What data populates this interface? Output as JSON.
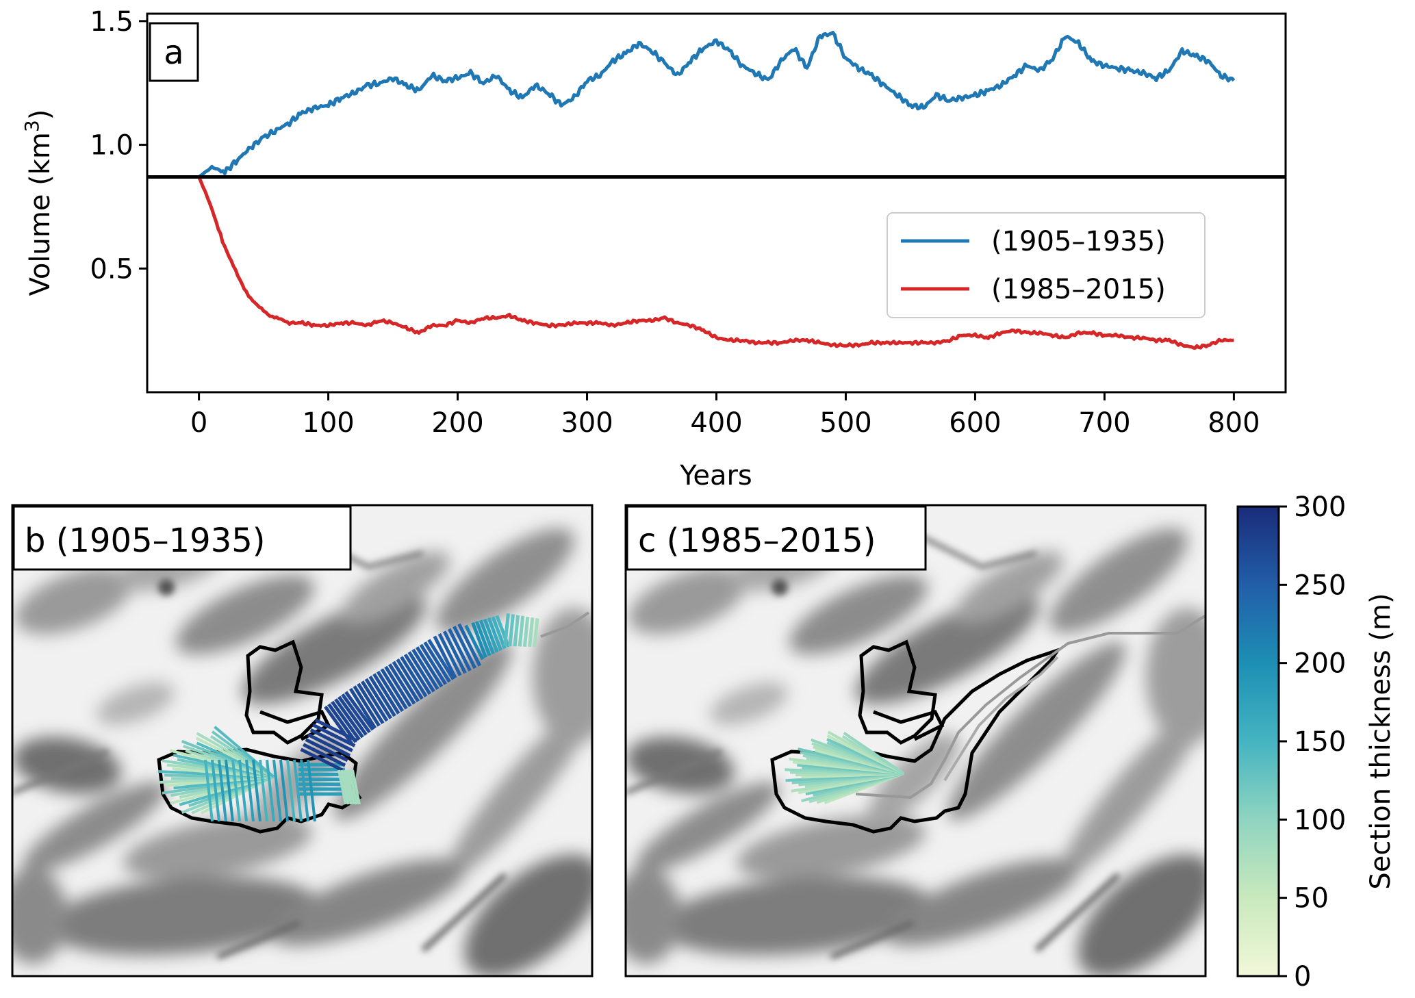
{
  "chart_data": [
    {
      "panel": "a",
      "type": "line",
      "xlabel": "Years",
      "ylabel": "Volume (km",
      "ylabel_sup": "3",
      "ylabel_end": ")",
      "xlim": [
        -40,
        840
      ],
      "ylim": [
        0.0,
        1.53
      ],
      "xticks": [
        0,
        100,
        200,
        300,
        400,
        500,
        600,
        700,
        800
      ],
      "yticks": [
        0.5,
        1.0,
        1.5
      ],
      "ytick_labels": [
        "0.5",
        "1.0",
        "1.5"
      ],
      "reference_line": {
        "y": 0.87,
        "color": "#000000"
      },
      "legend_position": "center-right",
      "series": [
        {
          "name": "(1905–1935)",
          "color": "#1f77b4",
          "x": [
            0,
            10,
            20,
            30,
            40,
            50,
            60,
            70,
            80,
            90,
            100,
            110,
            120,
            130,
            140,
            150,
            160,
            170,
            180,
            190,
            200,
            210,
            220,
            230,
            240,
            250,
            260,
            270,
            280,
            290,
            300,
            310,
            320,
            330,
            340,
            350,
            360,
            370,
            380,
            390,
            400,
            410,
            420,
            430,
            440,
            450,
            460,
            470,
            480,
            490,
            500,
            510,
            520,
            530,
            540,
            550,
            560,
            570,
            580,
            590,
            600,
            610,
            620,
            630,
            640,
            650,
            660,
            670,
            680,
            690,
            700,
            710,
            720,
            730,
            740,
            750,
            760,
            770,
            780,
            790,
            800
          ],
          "values": [
            0.87,
            0.91,
            0.89,
            0.94,
            0.99,
            1.03,
            1.06,
            1.09,
            1.13,
            1.15,
            1.16,
            1.19,
            1.21,
            1.24,
            1.25,
            1.27,
            1.24,
            1.22,
            1.28,
            1.26,
            1.27,
            1.29,
            1.25,
            1.28,
            1.22,
            1.19,
            1.24,
            1.21,
            1.16,
            1.19,
            1.26,
            1.28,
            1.34,
            1.37,
            1.41,
            1.38,
            1.33,
            1.28,
            1.34,
            1.39,
            1.42,
            1.38,
            1.32,
            1.29,
            1.26,
            1.34,
            1.39,
            1.31,
            1.44,
            1.45,
            1.35,
            1.31,
            1.28,
            1.24,
            1.2,
            1.16,
            1.15,
            1.2,
            1.18,
            1.19,
            1.2,
            1.22,
            1.24,
            1.28,
            1.32,
            1.3,
            1.35,
            1.44,
            1.41,
            1.34,
            1.32,
            1.31,
            1.3,
            1.29,
            1.27,
            1.3,
            1.38,
            1.36,
            1.34,
            1.28,
            1.26
          ]
        },
        {
          "name": "(1985–2015)",
          "color": "#d62728",
          "x": [
            0,
            5,
            10,
            15,
            20,
            25,
            30,
            35,
            40,
            45,
            50,
            55,
            60,
            65,
            70,
            80,
            90,
            100,
            110,
            120,
            130,
            140,
            150,
            160,
            170,
            180,
            190,
            200,
            210,
            220,
            230,
            240,
            250,
            260,
            270,
            280,
            290,
            300,
            310,
            320,
            330,
            340,
            350,
            360,
            370,
            380,
            390,
            400,
            410,
            420,
            430,
            440,
            450,
            460,
            470,
            480,
            490,
            500,
            510,
            520,
            530,
            540,
            550,
            560,
            570,
            580,
            590,
            600,
            610,
            620,
            630,
            640,
            650,
            660,
            670,
            680,
            690,
            700,
            710,
            720,
            730,
            740,
            750,
            760,
            770,
            780,
            790,
            800
          ],
          "values": [
            0.87,
            0.81,
            0.74,
            0.66,
            0.59,
            0.53,
            0.47,
            0.42,
            0.38,
            0.35,
            0.33,
            0.31,
            0.3,
            0.29,
            0.28,
            0.28,
            0.27,
            0.27,
            0.28,
            0.28,
            0.27,
            0.29,
            0.28,
            0.26,
            0.24,
            0.27,
            0.27,
            0.29,
            0.28,
            0.3,
            0.3,
            0.31,
            0.29,
            0.28,
            0.27,
            0.27,
            0.28,
            0.28,
            0.28,
            0.27,
            0.28,
            0.29,
            0.29,
            0.3,
            0.28,
            0.27,
            0.25,
            0.22,
            0.21,
            0.21,
            0.2,
            0.2,
            0.2,
            0.21,
            0.21,
            0.2,
            0.19,
            0.19,
            0.19,
            0.2,
            0.2,
            0.2,
            0.2,
            0.2,
            0.2,
            0.21,
            0.23,
            0.23,
            0.22,
            0.24,
            0.25,
            0.24,
            0.24,
            0.23,
            0.22,
            0.24,
            0.24,
            0.23,
            0.23,
            0.22,
            0.22,
            0.21,
            0.21,
            0.19,
            0.18,
            0.19,
            0.21,
            0.21
          ]
        }
      ]
    },
    {
      "panel": "b",
      "type": "heatmap",
      "title": "b (1905–1935)"
    },
    {
      "panel": "c",
      "type": "heatmap",
      "title": "c (1985–2015)"
    },
    {
      "panel": "colorbar",
      "type": "heatmap",
      "label": "Section thickness (m)",
      "range": [
        0,
        300
      ],
      "ticks": [
        0,
        50,
        100,
        150,
        200,
        250,
        300
      ],
      "colors": [
        "#f2f7d9",
        "#c9e9bd",
        "#8fd4c0",
        "#45b4c1",
        "#1d8fb4",
        "#225ea8",
        "#1a2c7a"
      ]
    }
  ],
  "panel_a_label": "a",
  "panel_b_label": "b (1905–1935)",
  "panel_c_label": "c (1985–2015)"
}
